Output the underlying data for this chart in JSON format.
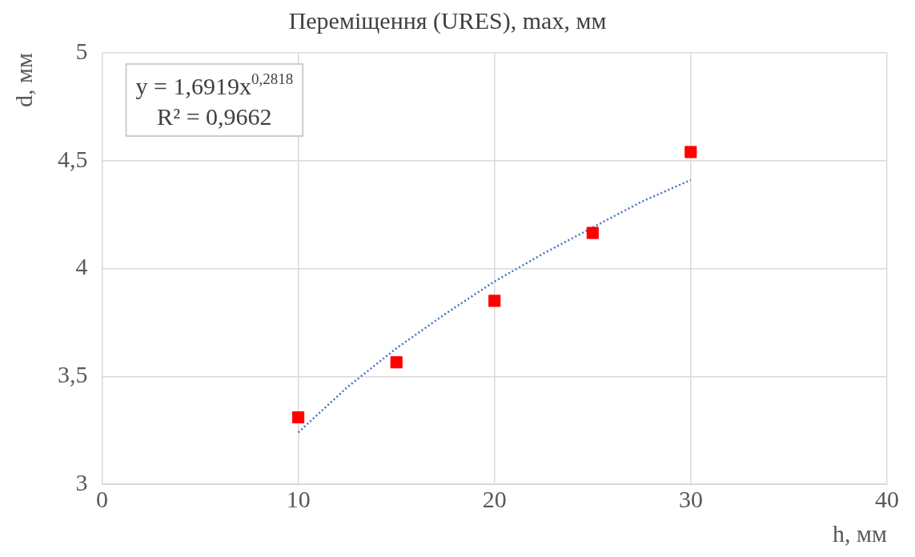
{
  "chart_data": {
    "type": "scatter",
    "title": "Переміщення (URES), max, мм",
    "xlabel": "h, мм",
    "ylabel": "d, мм",
    "xlim": [
      0,
      40
    ],
    "xticks": [
      0,
      10,
      20,
      30,
      40
    ],
    "ylim": [
      3,
      5
    ],
    "yticks": [
      3,
      {
        "value": 3.5,
        "label": "3,5"
      },
      4,
      {
        "value": 4.5,
        "label": "4,5"
      },
      5
    ],
    "grid": true,
    "legend": false,
    "marker": "square",
    "annotations": [
      "y = 1,6919x$^{0,2818}$",
      "R² = 0,9662"
    ],
    "series": [
      {
        "type": "scatter",
        "color": "#ff0000",
        "x": [
          10,
          15,
          20,
          25,
          30
        ],
        "values": [
          3.31,
          3.565,
          3.85,
          4.165,
          4.54
        ]
      },
      {
        "type": "line",
        "color": "#4472c4",
        "line_style": "dotted",
        "marker": "none",
        "x": [
          10,
          12.5,
          15,
          17.5,
          20,
          22.5,
          25,
          27.5,
          30
        ],
        "values": [
          3.24,
          3.45,
          3.63,
          3.79,
          3.94,
          4.07,
          4.19,
          4.31,
          4.41
        ]
      }
    ]
  }
}
